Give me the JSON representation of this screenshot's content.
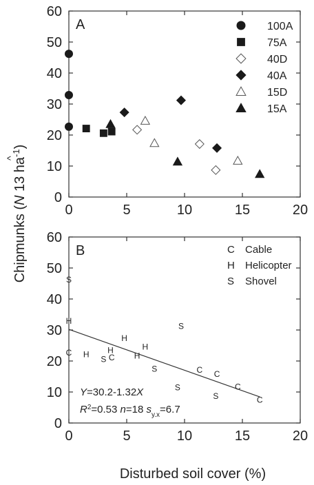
{
  "figure": {
    "ylabel": "Chipmunks (",
    "ylabel_nhat": "N",
    "ylabel_rest": " 13 ha",
    "ylabel_exp": "-1",
    "ylabel_close": ")",
    "xlabel": "Disturbed soil cover (%)"
  },
  "chart_data": [
    {
      "type": "scatter",
      "panel_label": "A",
      "xlim": [
        0,
        20
      ],
      "ylim": [
        0,
        60
      ],
      "xticks": [
        0,
        5,
        10,
        15,
        20
      ],
      "yticks": [
        0,
        10,
        20,
        30,
        40,
        50,
        60
      ],
      "legend_position": "top-right",
      "series": [
        {
          "name": "100A",
          "marker": "circle",
          "filled": true,
          "points": [
            [
              0,
              46.2
            ],
            [
              0,
              32.9
            ],
            [
              0,
              22.7
            ]
          ]
        },
        {
          "name": "75A",
          "marker": "square",
          "filled": true,
          "points": [
            [
              1.5,
              22.1
            ],
            [
              3.0,
              20.6
            ],
            [
              3.7,
              21.1
            ]
          ]
        },
        {
          "name": "40D",
          "marker": "diamond",
          "filled": false,
          "points": [
            [
              5.9,
              21.7
            ],
            [
              11.3,
              17.1
            ],
            [
              12.7,
              8.7
            ]
          ]
        },
        {
          "name": "40A",
          "marker": "diamond",
          "filled": true,
          "points": [
            [
              4.8,
              27.3
            ],
            [
              9.7,
              31.2
            ],
            [
              12.8,
              15.8
            ]
          ]
        },
        {
          "name": "15D",
          "marker": "triangle",
          "filled": false,
          "points": [
            [
              6.6,
              24.6
            ],
            [
              7.4,
              17.4
            ],
            [
              14.6,
              11.7
            ]
          ]
        },
        {
          "name": "15A",
          "marker": "triangle",
          "filled": true,
          "points": [
            [
              3.6,
              23.5
            ],
            [
              9.4,
              11.4
            ],
            [
              16.5,
              7.4
            ]
          ]
        }
      ]
    },
    {
      "type": "scatter",
      "panel_label": "B",
      "xlim": [
        0,
        20
      ],
      "ylim": [
        0,
        60
      ],
      "xticks": [
        0,
        5,
        10,
        15,
        20
      ],
      "yticks": [
        0,
        10,
        20,
        30,
        40,
        50,
        60
      ],
      "legend_position": "top-right",
      "legend": [
        {
          "code": "C",
          "name": "Cable"
        },
        {
          "code": "H",
          "name": "Helicopter"
        },
        {
          "code": "S",
          "name": "Shovel"
        }
      ],
      "points": [
        {
          "code": "S",
          "x": 0,
          "y": 46.2
        },
        {
          "code": "H",
          "x": 0,
          "y": 32.9
        },
        {
          "code": "C",
          "x": 0,
          "y": 22.7
        },
        {
          "code": "H",
          "x": 1.5,
          "y": 22.1
        },
        {
          "code": "S",
          "x": 3.0,
          "y": 20.6
        },
        {
          "code": "H",
          "x": 3.6,
          "y": 23.5
        },
        {
          "code": "C",
          "x": 3.7,
          "y": 21.1
        },
        {
          "code": "H",
          "x": 4.8,
          "y": 27.3
        },
        {
          "code": "H",
          "x": 5.9,
          "y": 21.7
        },
        {
          "code": "H",
          "x": 6.6,
          "y": 24.6
        },
        {
          "code": "S",
          "x": 7.4,
          "y": 17.4
        },
        {
          "code": "S",
          "x": 9.4,
          "y": 11.4
        },
        {
          "code": "S",
          "x": 9.7,
          "y": 31.2
        },
        {
          "code": "C",
          "x": 11.3,
          "y": 17.1
        },
        {
          "code": "S",
          "x": 12.7,
          "y": 8.7
        },
        {
          "code": "C",
          "x": 12.8,
          "y": 15.8
        },
        {
          "code": "C",
          "x": 14.6,
          "y": 11.7
        },
        {
          "code": "C",
          "x": 16.5,
          "y": 7.4
        }
      ],
      "regression": {
        "intercept": 30.2,
        "slope": -1.32,
        "x_range": [
          0,
          16.5
        ]
      },
      "annotations": {
        "eq_y": "Y",
        "eq_mid": "=30.2-1.32",
        "eq_x": "X",
        "r_label": "R",
        "r_exp": "2",
        "r_val": "=0.53 ",
        "n_label": "n",
        "n_val": "=18 ",
        "s_label": "s",
        "s_sub": "y.x",
        "s_val": "=6.7"
      }
    }
  ]
}
